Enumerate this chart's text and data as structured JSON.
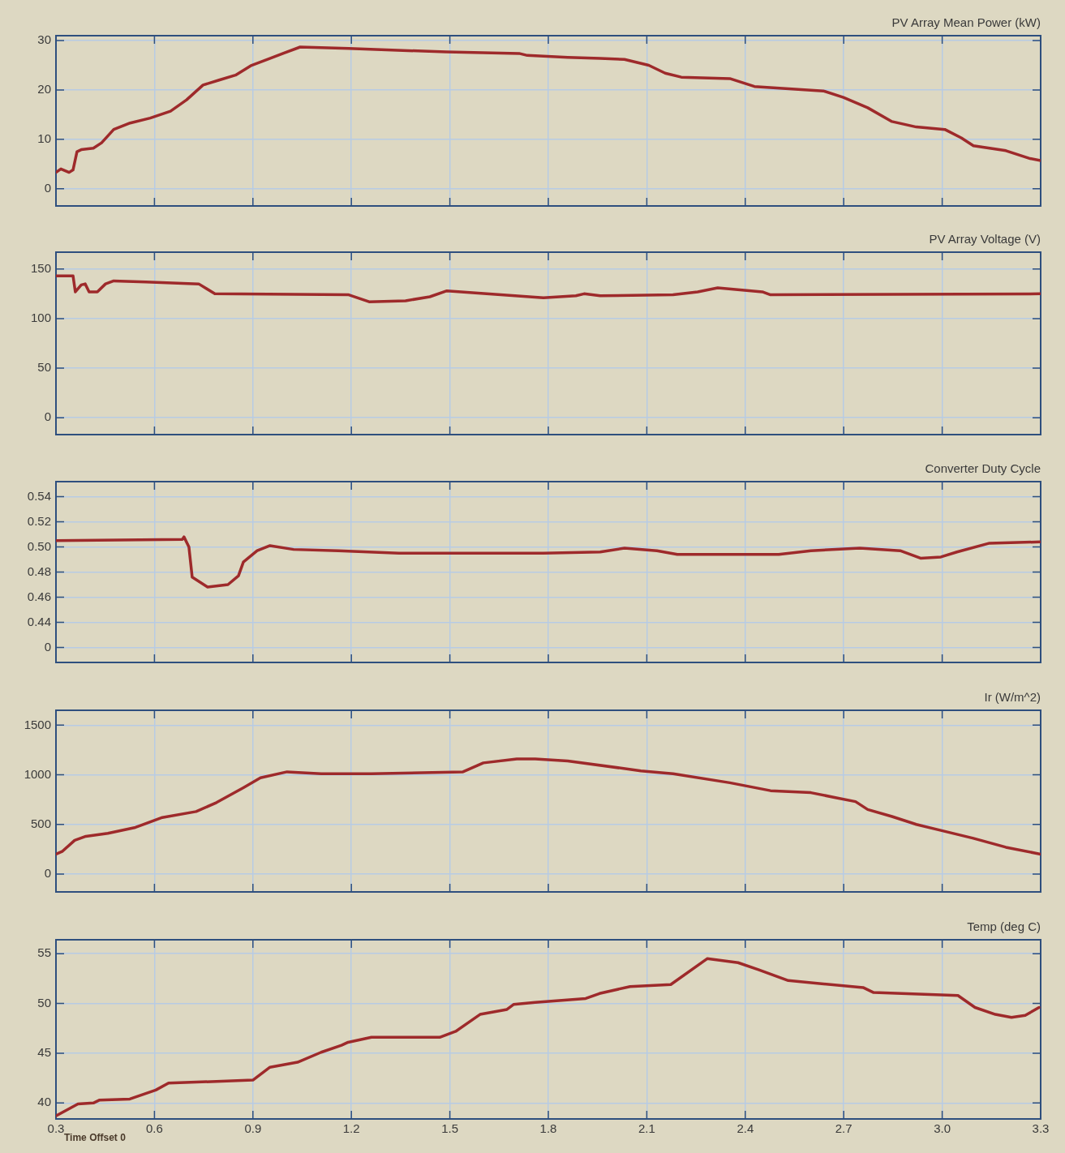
{
  "chart_data": [
    {
      "type": "line",
      "title": "PV Array Mean Power (kW)",
      "xlim": [
        0.3,
        3.3
      ],
      "xticks": [
        0.3,
        0.6,
        0.9,
        1.2,
        1.5,
        1.8,
        2.1,
        2.4,
        2.7,
        3,
        3.3
      ],
      "ylim": [
        -3.5,
        31
      ],
      "yticks": [
        0,
        10,
        20,
        30
      ],
      "grid": true,
      "tick_labels": "y",
      "series": [
        {
          "color": "#9e2a2b",
          "x": [
            0.3,
            0.315,
            0.34,
            0.352,
            0.364,
            0.377,
            0.414,
            0.439,
            0.476,
            0.526,
            0.587,
            0.649,
            0.698,
            0.748,
            0.797,
            0.847,
            0.896,
            0.945,
            0.995,
            1.044,
            1.192,
            1.489,
            1.711,
            1.736,
            1.859,
            1.958,
            2.032,
            2.106,
            2.156,
            2.205,
            2.353,
            2.428,
            2.638,
            2.699,
            2.773,
            2.847,
            2.921,
            3.008,
            3.058,
            3.095,
            3.194,
            3.268,
            3.3
          ],
          "values": [
            3.3,
            4,
            3.3,
            3.8,
            7.5,
            7.9,
            8.2,
            9.3,
            12,
            13.3,
            14.3,
            15.7,
            18,
            21,
            22,
            23,
            25,
            26.2,
            27.5,
            28.7,
            28.4,
            27.7,
            27.4,
            27,
            26.6,
            26.4,
            26.2,
            25,
            23.4,
            22.6,
            22.3,
            20.7,
            19.8,
            18.5,
            16.4,
            13.6,
            12.5,
            12,
            10.3,
            8.7,
            7.7,
            6.1,
            5.7
          ]
        }
      ]
    },
    {
      "type": "line",
      "title": "PV Array Voltage (V)",
      "xlim": [
        0.3,
        3.3
      ],
      "xticks": [
        0.3,
        0.6,
        0.9,
        1.2,
        1.5,
        1.8,
        2.1,
        2.4,
        2.7,
        3,
        3.3
      ],
      "ylim": [
        -17,
        167
      ],
      "yticks": [
        0,
        50,
        100,
        150
      ],
      "grid": true,
      "tick_labels": "y",
      "series": [
        {
          "color": "#9e2a2b",
          "x": [
            0.3,
            0.352,
            0.359,
            0.377,
            0.389,
            0.401,
            0.426,
            0.451,
            0.476,
            0.574,
            0.735,
            0.784,
            1.192,
            1.254,
            1.365,
            1.439,
            1.491,
            1.612,
            1.785,
            1.884,
            1.909,
            1.958,
            2.18,
            2.255,
            2.316,
            2.452,
            2.477,
            3.3
          ],
          "values": [
            143,
            143,
            127,
            134,
            135,
            127,
            127,
            135,
            138,
            137,
            135,
            125,
            124,
            117,
            118,
            122,
            128,
            125,
            121,
            123,
            125,
            123,
            124,
            127,
            131,
            127,
            124,
            125
          ]
        }
      ]
    },
    {
      "type": "line",
      "title": "Converter Duty Cycle",
      "xlim": [
        0.3,
        3.3
      ],
      "xticks": [
        0.3,
        0.6,
        0.9,
        1.2,
        1.5,
        1.8,
        2.1,
        2.4,
        2.7,
        3,
        3.3
      ],
      "ylim": [
        0.408,
        0.552
      ],
      "yticks": [
        {
          "value": 0.42,
          "label": "0"
        },
        0.44,
        0.46,
        0.48,
        {
          "value": 0.5,
          "label": "0.50"
        },
        0.52,
        0.54
      ],
      "grid": true,
      "tick_labels": "y",
      "series": [
        {
          "color": "#9e2a2b",
          "x": [
            0.3,
            0.685,
            0.69,
            0.705,
            0.715,
            0.762,
            0.824,
            0.856,
            0.871,
            0.913,
            0.952,
            1.024,
            1.16,
            1.345,
            1.785,
            1.958,
            2.032,
            2.131,
            2.193,
            2.502,
            2.6,
            2.749,
            2.872,
            2.934,
            2.996,
            3.045,
            3.144,
            3.3
          ],
          "values": [
            0.505,
            0.506,
            0.508,
            0.5,
            0.476,
            0.468,
            0.47,
            0.477,
            0.488,
            0.497,
            0.501,
            0.498,
            0.497,
            0.495,
            0.495,
            0.496,
            0.499,
            0.497,
            0.494,
            0.494,
            0.497,
            0.499,
            0.497,
            0.491,
            0.492,
            0.496,
            0.503,
            0.504
          ]
        }
      ]
    },
    {
      "type": "line",
      "title": "Ir (W/m^2)",
      "xlim": [
        0.3,
        3.3
      ],
      "xticks": [
        0.3,
        0.6,
        0.9,
        1.2,
        1.5,
        1.8,
        2.1,
        2.4,
        2.7,
        3,
        3.3
      ],
      "ylim": [
        -180,
        1650
      ],
      "yticks": [
        0,
        500,
        1000,
        1500
      ],
      "grid": true,
      "tick_labels": "y",
      "series": [
        {
          "color": "#9e2a2b",
          "x": [
            0.3,
            0.32,
            0.357,
            0.391,
            0.458,
            0.542,
            0.624,
            0.727,
            0.789,
            0.871,
            0.923,
            1.004,
            1.108,
            1.261,
            1.54,
            1.602,
            1.704,
            1.76,
            1.859,
            2.082,
            2.18,
            2.353,
            2.477,
            2.6,
            2.675,
            2.736,
            2.773,
            2.847,
            2.921,
            2.996,
            3.095,
            3.194,
            3.3
          ],
          "values": [
            200,
            230,
            340,
            380,
            410,
            470,
            570,
            630,
            720,
            870,
            970,
            1030,
            1010,
            1010,
            1030,
            1120,
            1160,
            1160,
            1140,
            1040,
            1010,
            920,
            840,
            820,
            770,
            730,
            650,
            580,
            500,
            440,
            360,
            270,
            200
          ]
        }
      ]
    },
    {
      "type": "line",
      "title": "Temp (deg C)",
      "xlim": [
        0.3,
        3.3
      ],
      "xticks": [
        0.3,
        0.6,
        0.9,
        1.2,
        1.5,
        1.8,
        2.1,
        2.4,
        2.7,
        {
          "value": 3,
          "label": "3.0"
        },
        3.3
      ],
      "ylim": [
        38.4,
        56.4
      ],
      "yticks": [
        40,
        45,
        50,
        55
      ],
      "grid": true,
      "annotations": [
        "Time Offset 0"
      ],
      "series": [
        {
          "color": "#9e2a2b",
          "x": [
            0.3,
            0.367,
            0.414,
            0.433,
            0.525,
            0.604,
            0.643,
            0.9,
            0.952,
            1.036,
            1.108,
            1.17,
            1.19,
            1.261,
            1.469,
            1.518,
            1.592,
            1.674,
            1.694,
            1.76,
            1.914,
            1.956,
            2.049,
            2.173,
            2.284,
            2.378,
            2.44,
            2.531,
            2.759,
            2.791,
            3.048,
            3.1,
            3.162,
            3.211,
            3.253,
            3.295
          ],
          "values": [
            38.7,
            39.9,
            40,
            40.3,
            40.4,
            41.3,
            42,
            42.3,
            43.6,
            44.1,
            45.1,
            45.8,
            46.1,
            46.6,
            46.6,
            47.2,
            48.9,
            49.4,
            49.9,
            50.1,
            50.5,
            51,
            51.7,
            51.9,
            54.5,
            54.1,
            53.4,
            52.3,
            51.6,
            51.1,
            50.8,
            49.6,
            48.9,
            48.6,
            48.8,
            49.6
          ]
        }
      ]
    }
  ]
}
